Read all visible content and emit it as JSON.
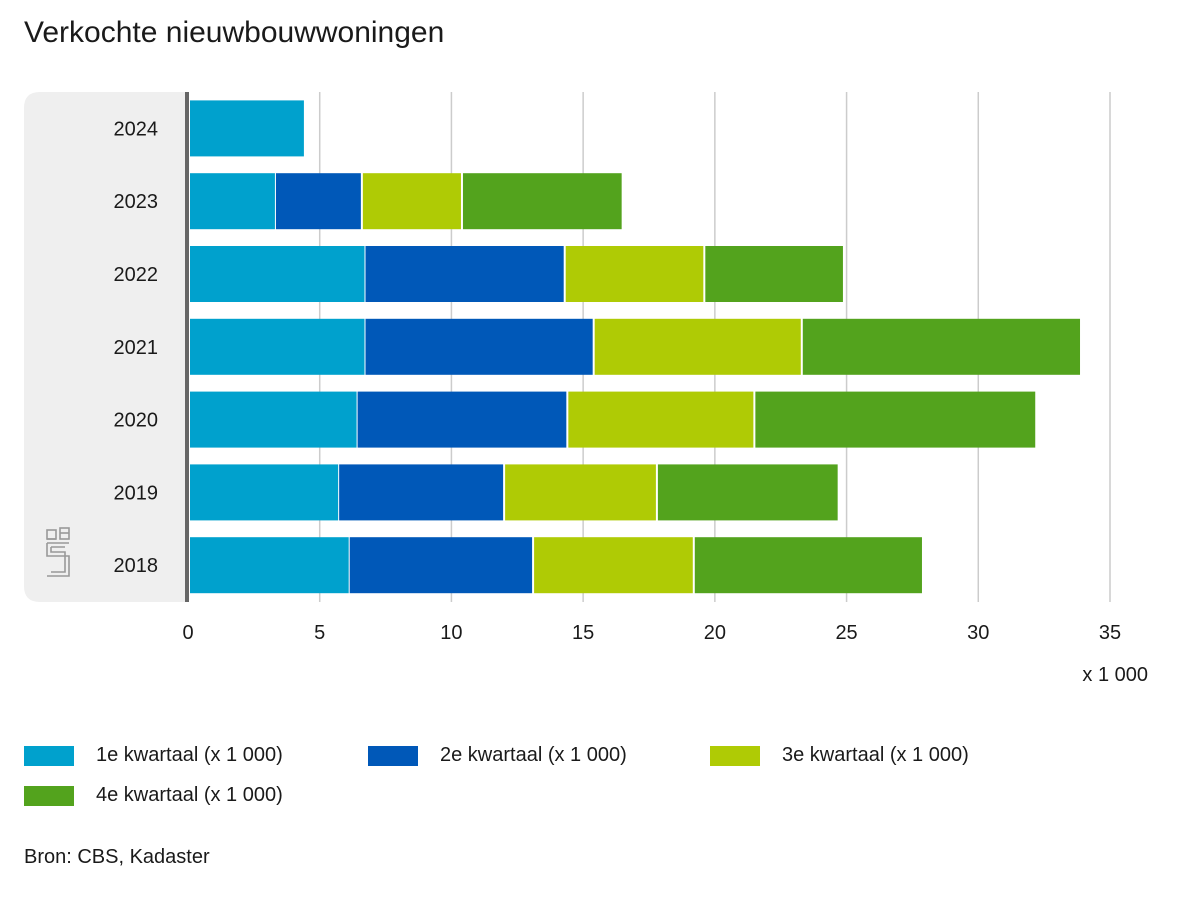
{
  "chart_data": {
    "type": "bar",
    "orientation": "horizontal",
    "stacked": true,
    "title": "Verkochte nieuwbouwwoningen",
    "categories": [
      "2024",
      "2023",
      "2022",
      "2021",
      "2020",
      "2019",
      "2018"
    ],
    "series": [
      {
        "name": "1e kwartaal (x 1 000)",
        "color": "#00a1cd",
        "values": [
          4.4,
          3.3,
          6.7,
          6.7,
          6.4,
          5.7,
          6.1
        ]
      },
      {
        "name": "2e kwartaal (x 1 000)",
        "color": "#0058b8",
        "values": [
          null,
          3.3,
          7.6,
          8.7,
          8.0,
          6.3,
          7.0
        ]
      },
      {
        "name": "3e kwartaal (x 1 000)",
        "color": "#afcb05",
        "values": [
          null,
          3.8,
          5.3,
          7.9,
          7.1,
          5.8,
          6.1
        ]
      },
      {
        "name": "4e kwartaal (x 1 000)",
        "color": "#53a31d",
        "values": [
          null,
          6.1,
          5.3,
          10.6,
          10.7,
          6.9,
          8.7
        ]
      }
    ],
    "xlim": [
      0,
      35
    ],
    "xticks": [
      "0",
      "5",
      "10",
      "15",
      "20",
      "25",
      "30",
      "35"
    ],
    "xunit": "x 1 000",
    "grid": true,
    "legend_position": "bottom",
    "source": "Bron: CBS, Kadaster"
  }
}
